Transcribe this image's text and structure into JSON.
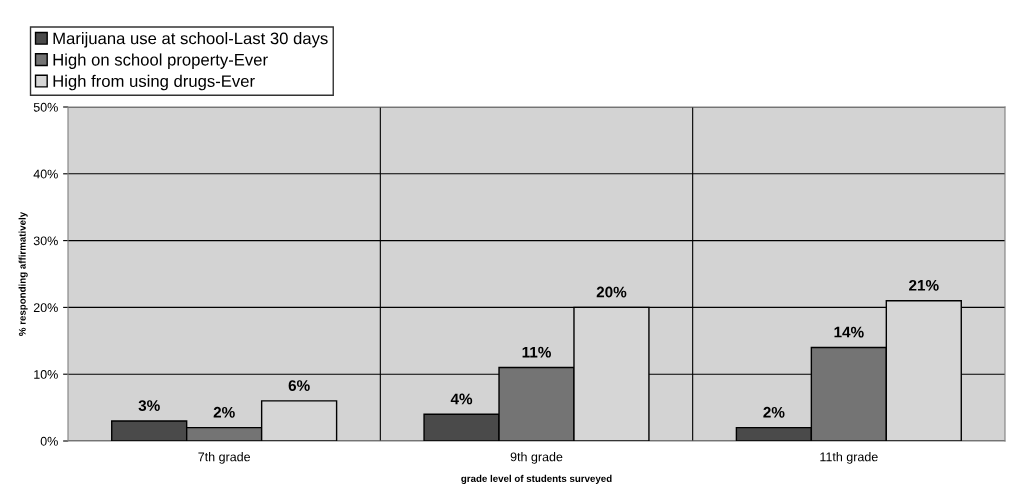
{
  "chart_data": {
    "type": "bar",
    "xlabel": "grade level of students surveyed",
    "ylabel": "% responding affirmatively",
    "categories": [
      "7th grade",
      "9th grade",
      "11th grade"
    ],
    "series": [
      {
        "name": "Marijuana use at school-Last 30 days",
        "color": "#4a4a4a",
        "values": [
          3,
          4,
          2
        ],
        "value_labels": [
          "3%",
          "4%",
          "2%"
        ]
      },
      {
        "name": "High on school property-Ever",
        "color": "#747474",
        "values": [
          2,
          11,
          14
        ],
        "value_labels": [
          "2%",
          "11%",
          "14%"
        ]
      },
      {
        "name": "High from using drugs-Ever",
        "color": "#d6d6d6",
        "values": [
          6,
          20,
          21
        ],
        "value_labels": [
          "6%",
          "20%",
          "21%"
        ]
      }
    ],
    "ylim": [
      0,
      50
    ],
    "yticks": [
      {
        "value": 0,
        "label": "0%"
      },
      {
        "value": 10,
        "label": "10%"
      },
      {
        "value": 20,
        "label": "20%"
      },
      {
        "value": 30,
        "label": "30%"
      },
      {
        "value": 40,
        "label": "40%"
      },
      {
        "value": 50,
        "label": "50%"
      }
    ],
    "grid": true,
    "legend": "top left"
  }
}
